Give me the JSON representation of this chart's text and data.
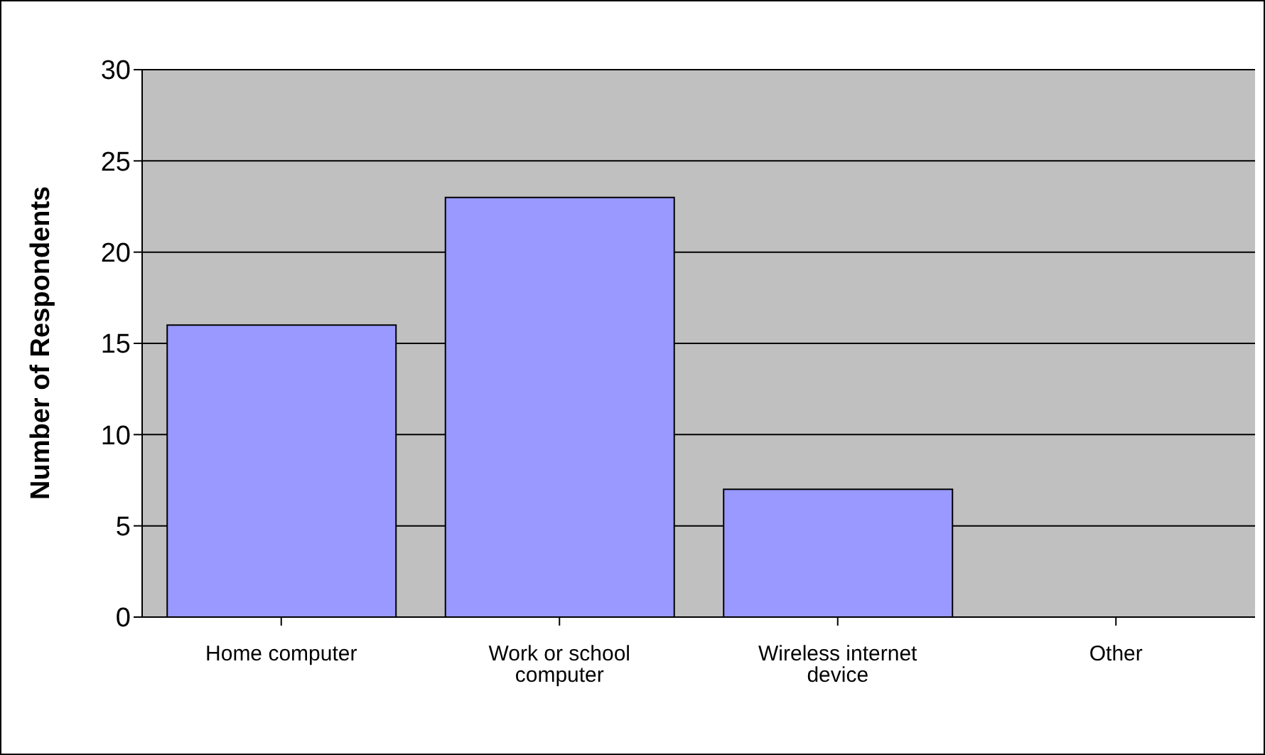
{
  "chart_data": {
    "type": "bar",
    "ylabel": "Number of Respondents",
    "categories": [
      "Home computer",
      "Work or school computer",
      "Wireless internet device",
      "Other"
    ],
    "values": [
      16,
      23,
      7,
      0
    ],
    "color": "#9999ff",
    "ylim": [
      0,
      30
    ],
    "yticks": [
      0,
      5,
      10,
      15,
      20,
      25,
      30
    ],
    "grid": "y"
  }
}
